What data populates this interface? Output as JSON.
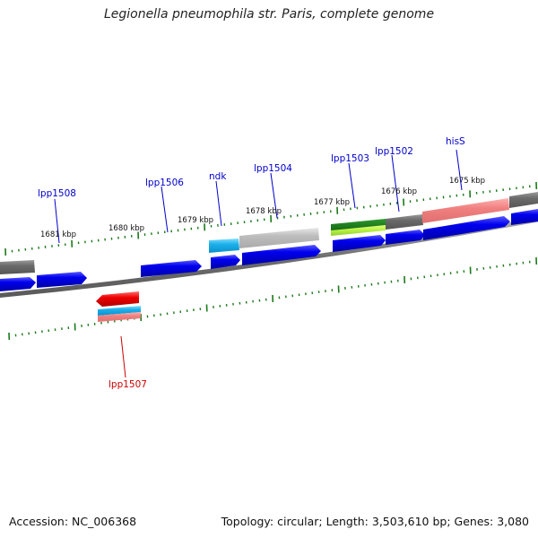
{
  "title": "Legionella pneumophila str. Paris, complete genome",
  "footer": {
    "accession": "Accession: NC_006368",
    "summary": "Topology: circular; Length: 3,503,610 bp; Genes: 3,080"
  },
  "colors": {
    "backbone": "#6e6e6e",
    "tick": "#1a7a1a",
    "cds": "#0000e6",
    "label_forward": "#0000cc",
    "label_reverse": "#cc0000"
  },
  "position_labels": [
    "1675 kbp",
    "1676 kbp",
    "1677 kbp",
    "1678 kbp",
    "1679 kbp",
    "1680 kbp",
    "1681 kbp"
  ],
  "gene_labels": [
    {
      "text": "hisS",
      "strand": "forward"
    },
    {
      "text": "lpp1502",
      "strand": "forward"
    },
    {
      "text": "lpp1503",
      "strand": "forward"
    },
    {
      "text": "lpp1504",
      "strand": "forward"
    },
    {
      "text": "ndk",
      "strand": "forward"
    },
    {
      "text": "lpp1506",
      "strand": "forward"
    },
    {
      "text": "lpp1508",
      "strand": "forward"
    },
    {
      "text": "lpp1507",
      "strand": "reverse"
    }
  ]
}
